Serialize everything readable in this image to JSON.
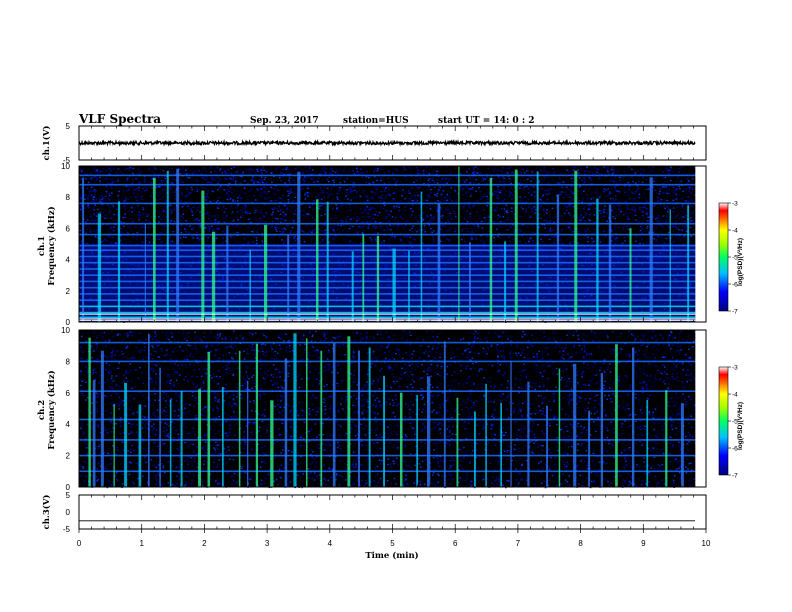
{
  "header": {
    "title": "VLF Spectra",
    "date": "Sep. 23, 2017",
    "station": "station=HUS",
    "start_ut": "start UT =   14: 0  : 2"
  },
  "colors": {
    "spectrogram_background": "#000000",
    "spectrogram_low": "#0000aa",
    "spectrogram_mid": "#00c8ff",
    "spectrogram_high": "#ff0000"
  },
  "chart_data": [
    {
      "type": "line",
      "name": "ch1-waveform",
      "ylabel": "ch.1(V)",
      "ylim": [
        -5,
        5
      ],
      "yticks": [
        "5",
        "-5"
      ],
      "x_range_min": [
        0,
        9.83
      ],
      "approx_level_V": 0,
      "grid": false
    },
    {
      "type": "heatmap",
      "name": "ch1-spectrogram",
      "ylabel": "ch.1\nFrequency (kHz)",
      "ylim": [
        0,
        10
      ],
      "yticks": [
        "0",
        "2",
        "4",
        "6",
        "8",
        "10"
      ],
      "x_range_min": [
        0,
        9.83
      ],
      "colorbar": {
        "label": "log(PSD)(V²/Hz)",
        "range": [
          -7,
          -3
        ],
        "ticks": [
          "-3",
          "-4",
          "-5",
          "-6",
          "-7"
        ]
      },
      "horizontal_bands_kHz": [
        0.3,
        0.6,
        1.0,
        1.4,
        1.8,
        2.2,
        2.6,
        3.0,
        3.4,
        3.8,
        4.2,
        4.6,
        4.9,
        5.6,
        6.3,
        7.6,
        8.8,
        9.4
      ],
      "vertical_bursts_min": [
        0.05,
        0.3,
        0.62,
        1.05,
        1.18,
        1.4,
        1.55,
        1.95,
        2.12,
        2.35,
        2.72,
        2.95,
        3.32,
        3.48,
        3.78,
        3.95,
        4.35,
        4.52,
        4.75,
        5.0,
        5.25,
        5.45,
        5.72,
        6.05,
        6.22,
        6.55,
        6.78,
        6.95,
        7.3,
        7.62,
        7.9,
        8.25,
        8.45,
        8.78,
        9.1,
        9.42,
        9.7
      ]
    },
    {
      "type": "heatmap",
      "name": "ch2-spectrogram",
      "ylabel": "ch.2\nFrequency (kHz)",
      "ylim": [
        0,
        10
      ],
      "yticks": [
        "0",
        "2",
        "4",
        "6",
        "8",
        "10"
      ],
      "x_range_min": [
        0,
        9.83
      ],
      "colorbar": {
        "label": "log(PSD)(V²/Hz)",
        "range": [
          -7,
          -3
        ],
        "ticks": [
          "-3",
          "-4",
          "-5",
          "-6",
          "-7"
        ]
      },
      "horizontal_bands_kHz": [
        1.0,
        2.0,
        3.0,
        4.3,
        6.1,
        8.0,
        9.2
      ],
      "vertical_bursts_min": [
        0.15,
        0.22,
        0.35,
        0.55,
        0.72,
        0.95,
        1.1,
        1.28,
        1.45,
        1.62,
        1.9,
        2.05,
        2.28,
        2.55,
        2.68,
        2.82,
        3.05,
        3.28,
        3.42,
        3.62,
        3.85,
        4.05,
        4.28,
        4.45,
        4.62,
        4.85,
        5.12,
        5.38,
        5.55,
        5.82,
        6.02,
        6.3,
        6.48,
        6.72,
        6.88,
        7.15,
        7.45,
        7.65,
        7.88,
        8.12,
        8.32,
        8.55,
        8.82,
        9.05,
        9.35,
        9.6
      ]
    },
    {
      "type": "line",
      "name": "ch3-waveform",
      "ylabel": "ch.3(V)",
      "ylim": [
        -5,
        5
      ],
      "yticks": [
        "5",
        "0",
        "-5"
      ],
      "x_range_min": [
        0,
        9.83
      ],
      "approx_level_V": -2.6,
      "grid": false
    }
  ],
  "x_axis": {
    "label": "Time (min)",
    "range": [
      0,
      10
    ],
    "ticks": [
      "0",
      "1",
      "2",
      "3",
      "4",
      "5",
      "6",
      "7",
      "8",
      "9",
      "10"
    ]
  }
}
